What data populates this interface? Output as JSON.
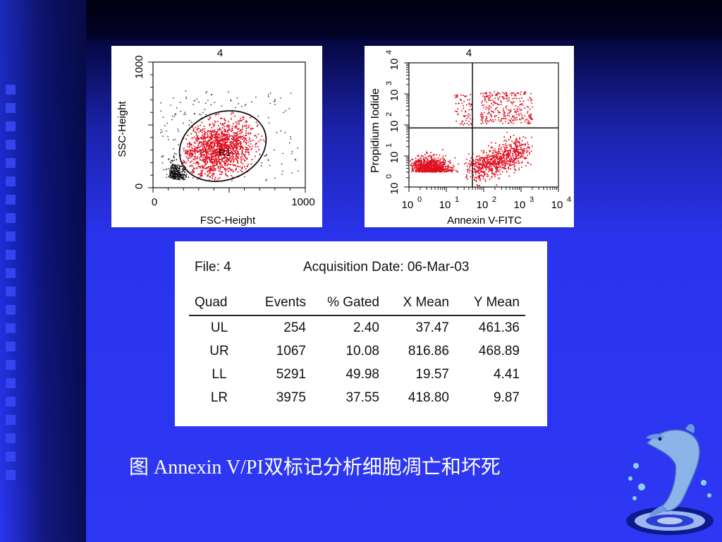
{
  "chart_data": [
    {
      "type": "scatter",
      "title": "4",
      "xlabel": "FSC-Height",
      "ylabel": "SSC-Height",
      "xlim": [
        0,
        1000
      ],
      "ylim": [
        0,
        1000
      ],
      "x_ticks": [
        "0",
        "1000"
      ],
      "y_ticks": [
        "0",
        "1000"
      ],
      "gate_label": "R1",
      "colors": {
        "gated": "#e01020",
        "ungated": "#111111",
        "gate": "#111111"
      }
    },
    {
      "type": "scatter",
      "title": "4",
      "xlabel": "Annexin V-FITC",
      "ylabel": "Propidium Iodide",
      "scale": "log",
      "xlim": [
        1,
        10000
      ],
      "ylim": [
        1,
        10000
      ],
      "x_ticks": [
        {
          "base": "10",
          "exp": "0"
        },
        {
          "base": "10",
          "exp": "1"
        },
        {
          "base": "10",
          "exp": "2"
        },
        {
          "base": "10",
          "exp": "3"
        },
        {
          "base": "10",
          "exp": "4"
        }
      ],
      "y_ticks": [
        {
          "base": "10",
          "exp": "0"
        },
        {
          "base": "10",
          "exp": "1"
        },
        {
          "base": "10",
          "exp": "2"
        },
        {
          "base": "10",
          "exp": "3"
        },
        {
          "base": "10",
          "exp": "4"
        }
      ],
      "quadrant_x": 50,
      "quadrant_y": 80,
      "colors": {
        "points": "#e01020",
        "quadrant": "#111111"
      }
    }
  ],
  "stats": {
    "file_label": "File: 4",
    "acq_label": "Acquisition Date: 06-Mar-03",
    "columns": [
      "Quad",
      "Events",
      "% Gated",
      "X Mean",
      "Y Mean"
    ],
    "rows": [
      [
        "UL",
        "254",
        "2.40",
        "37.47",
        "461.36"
      ],
      [
        "UR",
        "1067",
        "10.08",
        "816.86",
        "468.89"
      ],
      [
        "LL",
        "5291",
        "49.98",
        "19.57",
        "4.41"
      ],
      [
        "LR",
        "3975",
        "37.55",
        "418.80",
        "9.87"
      ]
    ]
  },
  "caption": "图  Annexin V/PI双标记分析细胞凋亡和坏死",
  "decor": {
    "mascot": "dolphin-icon"
  }
}
